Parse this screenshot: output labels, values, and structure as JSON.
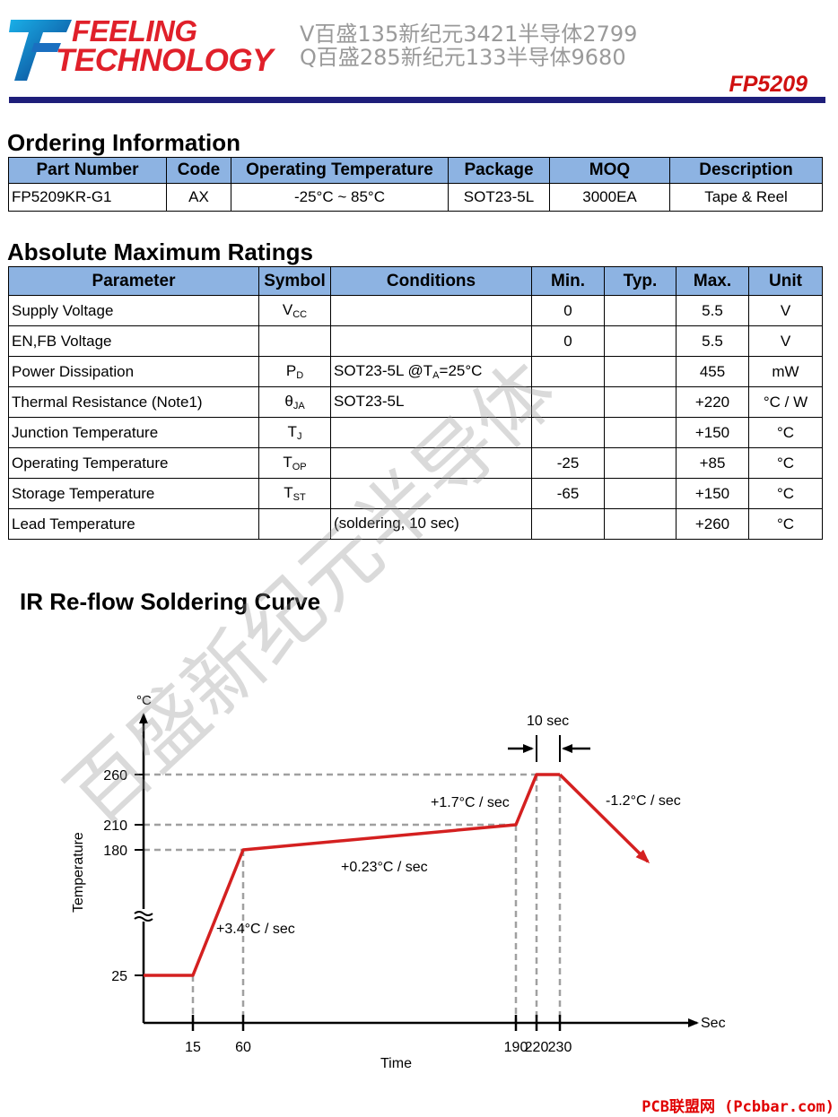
{
  "header": {
    "logo_line1": "FEELING",
    "logo_line2": "TECHNOLOGY",
    "watermark_line1": "V百盛135新纪元3421半导体2799",
    "watermark_line2": "Q百盛285新纪元133半导体9680",
    "part_number": "FP5209"
  },
  "ordering": {
    "title": "Ordering Information",
    "headers": [
      "Part Number",
      "Code",
      "Operating Temperature",
      "Package",
      "MOQ",
      "Description"
    ],
    "row": [
      "FP5209KR-G1",
      "AX",
      "-25°C ~ 85°C",
      "SOT23-5L",
      "3000EA",
      "Tape & Reel"
    ]
  },
  "ratings": {
    "title": "Absolute Maximum Ratings",
    "headers": [
      "Parameter",
      "Symbol",
      "Conditions",
      "Min.",
      "Typ.",
      "Max.",
      "Unit"
    ],
    "rows": [
      {
        "parameter": "Supply Voltage",
        "sym": "V",
        "sub": "CC",
        "cond": "",
        "cond_sub": "",
        "cond_after": "",
        "min": "0",
        "typ": "",
        "max": "5.5",
        "unit": "V"
      },
      {
        "parameter": "EN,FB Voltage",
        "sym": "",
        "sub": "",
        "cond": "",
        "cond_sub": "",
        "cond_after": "",
        "min": "0",
        "typ": "",
        "max": "5.5",
        "unit": "V"
      },
      {
        "parameter": "Power Dissipation",
        "sym": "P",
        "sub": "D",
        "cond": "SOT23-5L @T",
        "cond_sub": "A",
        "cond_after": "=25°C",
        "min": "",
        "typ": "",
        "max": "455",
        "unit": "mW"
      },
      {
        "parameter": "Thermal Resistance (Note1)",
        "sym": "θ",
        "sub": "JA",
        "cond": "SOT23-5L",
        "cond_sub": "",
        "cond_after": "",
        "min": "",
        "typ": "",
        "max": "+220",
        "unit": "°C / W"
      },
      {
        "parameter": "Junction Temperature",
        "sym": "T",
        "sub": "J",
        "cond": "",
        "cond_sub": "",
        "cond_after": "",
        "min": "",
        "typ": "",
        "max": "+150",
        "unit": "°C"
      },
      {
        "parameter": "Operating Temperature",
        "sym": "T",
        "sub": "OP",
        "cond": "",
        "cond_sub": "",
        "cond_after": "",
        "min": "-25",
        "typ": "",
        "max": "+85",
        "unit": "°C"
      },
      {
        "parameter": "Storage Temperature",
        "sym": "T",
        "sub": "ST",
        "cond": "",
        "cond_sub": "",
        "cond_after": "",
        "min": "-65",
        "typ": "",
        "max": "+150",
        "unit": "°C"
      },
      {
        "parameter": "Lead Temperature",
        "sym": "",
        "sub": "",
        "cond": "(soldering, 10 sec)",
        "cond_sub": "",
        "cond_after": "",
        "min": "",
        "typ": "",
        "max": "+260",
        "unit": "°C"
      }
    ]
  },
  "reflow": {
    "title": "IR Re-flow Soldering Curve",
    "y_unit": "°C",
    "y_label": "Temperature",
    "x_label": "Time",
    "x_unit": "Sec",
    "y_ticks": [
      "260",
      "210",
      "180",
      "25"
    ],
    "x_ticks": [
      "15",
      "60",
      "190",
      "220",
      "230"
    ],
    "dwell_label": "10 sec",
    "rates": [
      "+3.4°C / sec",
      "+0.23°C / sec",
      "+1.7°C / sec",
      "-1.2°C / sec"
    ],
    "colors": {
      "curve": "#d42020",
      "guides": "#a0a0a0"
    }
  },
  "watermark_diagonal": "百盛新纪元半导体",
  "footer": "PCB联盟网 (Pcbbar.com)"
}
